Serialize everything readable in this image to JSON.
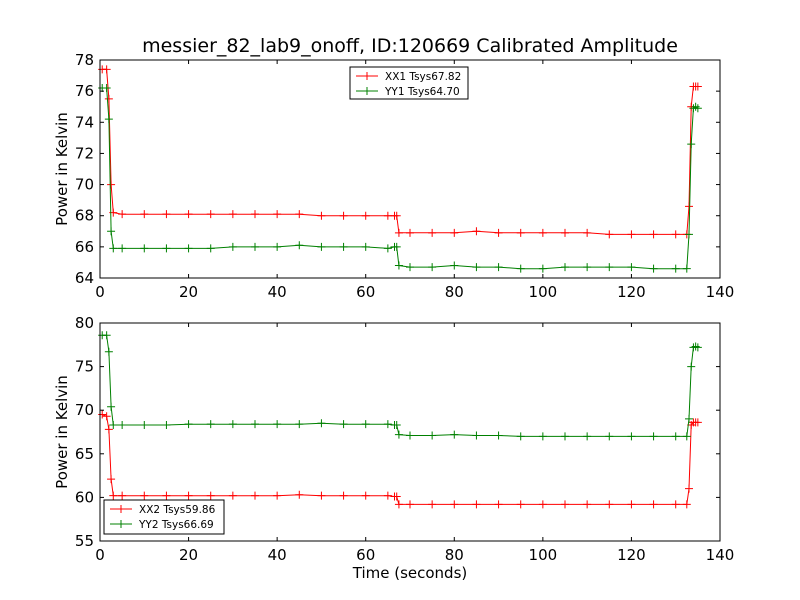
{
  "title": "messier_82_lab9_onoff, ID:120669 Calibrated Amplitude",
  "chart_data": [
    {
      "type": "line",
      "xlabel": "",
      "ylabel": "Power in Kelvin",
      "xlim": [
        0,
        140
      ],
      "ylim": [
        64,
        78
      ],
      "xticks": [
        0,
        20,
        40,
        60,
        80,
        100,
        120,
        140
      ],
      "yticks": [
        64,
        66,
        68,
        70,
        72,
        74,
        76,
        78
      ],
      "legend_position": "top-center",
      "grid": false,
      "series": [
        {
          "name": "XX1 Tsys67.82",
          "color": "#ff0000",
          "x": [
            0.5,
            1.5,
            2,
            2.5,
            3,
            5,
            10,
            15,
            20,
            25,
            30,
            35,
            40,
            45,
            50,
            55,
            60,
            65,
            66.5,
            67,
            67.5,
            70,
            75,
            80,
            85,
            90,
            95,
            100,
            105,
            110,
            115,
            120,
            125,
            130,
            132.5,
            133,
            133.5,
            134,
            134.5,
            135
          ],
          "y": [
            77.4,
            77.4,
            75.5,
            70.0,
            68.2,
            68.1,
            68.1,
            68.1,
            68.1,
            68.1,
            68.1,
            68.1,
            68.1,
            68.1,
            68.0,
            68.0,
            68.0,
            68.0,
            68.0,
            68.0,
            66.9,
            66.9,
            66.9,
            66.9,
            67.0,
            66.9,
            66.9,
            66.9,
            66.9,
            66.9,
            66.8,
            66.8,
            66.8,
            66.8,
            66.8,
            68.6,
            75.0,
            76.3,
            76.3,
            76.3
          ]
        },
        {
          "name": "YY1 Tsys64.70",
          "color": "#008000",
          "x": [
            0.5,
            1.5,
            2,
            2.5,
            3,
            5,
            10,
            15,
            20,
            25,
            30,
            35,
            40,
            45,
            50,
            55,
            60,
            65,
            66.5,
            67,
            67.5,
            70,
            75,
            80,
            85,
            90,
            95,
            100,
            105,
            110,
            115,
            120,
            125,
            130,
            132.5,
            133,
            133.5,
            134,
            134.5,
            135
          ],
          "y": [
            76.2,
            76.2,
            74.2,
            67.0,
            65.9,
            65.9,
            65.9,
            65.9,
            65.9,
            65.9,
            66.0,
            66.0,
            66.0,
            66.1,
            66.0,
            66.0,
            66.0,
            65.9,
            66.0,
            66.0,
            64.8,
            64.7,
            64.7,
            64.8,
            64.7,
            64.7,
            64.6,
            64.6,
            64.7,
            64.7,
            64.7,
            64.7,
            64.6,
            64.6,
            64.6,
            66.8,
            72.6,
            74.9,
            75.0,
            74.9
          ]
        }
      ]
    },
    {
      "type": "line",
      "xlabel": "Time (seconds)",
      "ylabel": "Power in Kelvin",
      "xlim": [
        0,
        140
      ],
      "ylim": [
        55,
        80
      ],
      "xticks": [
        0,
        20,
        40,
        60,
        80,
        100,
        120,
        140
      ],
      "yticks": [
        55,
        60,
        65,
        70,
        75,
        80
      ],
      "legend_position": "lower-left",
      "grid": false,
      "series": [
        {
          "name": "XX2 Tsys59.86",
          "color": "#ff0000",
          "x": [
            0.5,
            1.5,
            2,
            2.5,
            3,
            5,
            10,
            15,
            20,
            25,
            30,
            35,
            40,
            45,
            50,
            55,
            60,
            65,
            66.5,
            67,
            67.5,
            70,
            75,
            80,
            85,
            90,
            95,
            100,
            105,
            110,
            115,
            120,
            125,
            130,
            132.5,
            133,
            133.5,
            134,
            134.5,
            135
          ],
          "y": [
            69.5,
            69.3,
            67.8,
            62.1,
            60.2,
            60.2,
            60.2,
            60.2,
            60.2,
            60.2,
            60.2,
            60.2,
            60.2,
            60.3,
            60.2,
            60.2,
            60.2,
            60.2,
            60.1,
            60.1,
            59.2,
            59.2,
            59.2,
            59.2,
            59.2,
            59.2,
            59.2,
            59.2,
            59.2,
            59.2,
            59.2,
            59.2,
            59.2,
            59.2,
            59.2,
            61.0,
            68.3,
            68.6,
            68.6,
            68.6
          ]
        },
        {
          "name": "YY2 Tsys66.69",
          "color": "#008000",
          "x": [
            0.5,
            1.5,
            2,
            2.5,
            3,
            5,
            10,
            15,
            20,
            25,
            30,
            35,
            40,
            45,
            50,
            55,
            60,
            65,
            66.5,
            67,
            67.5,
            70,
            75,
            80,
            85,
            90,
            95,
            100,
            105,
            110,
            115,
            120,
            125,
            130,
            132.5,
            133,
            133.5,
            134,
            134.5,
            135
          ],
          "y": [
            78.6,
            78.6,
            76.7,
            70.4,
            68.3,
            68.3,
            68.3,
            68.3,
            68.4,
            68.4,
            68.4,
            68.4,
            68.4,
            68.4,
            68.5,
            68.4,
            68.4,
            68.4,
            68.3,
            68.3,
            67.2,
            67.1,
            67.1,
            67.2,
            67.1,
            67.1,
            67.0,
            67.0,
            67.0,
            67.0,
            67.0,
            67.0,
            67.0,
            67.0,
            67.0,
            69.0,
            75.0,
            77.2,
            77.3,
            77.2
          ]
        }
      ]
    }
  ]
}
